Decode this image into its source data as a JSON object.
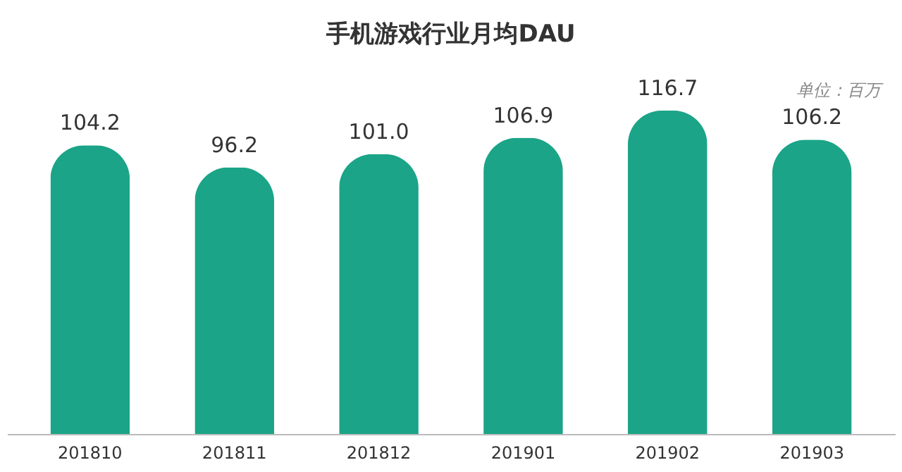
{
  "chart_data": {
    "type": "bar",
    "title": "手机游戏行业月均DAU",
    "annotations": [
      "单位：百万"
    ],
    "categories": [
      "201810",
      "201811",
      "201812",
      "201901",
      "201902",
      "201903"
    ],
    "values": [
      104.2,
      96.2,
      101.0,
      106.9,
      116.7,
      106.2
    ],
    "value_labels": [
      "104.2",
      "96.2",
      "101.0",
      "106.9",
      "116.7",
      "106.2"
    ],
    "color": "#1ba487"
  }
}
